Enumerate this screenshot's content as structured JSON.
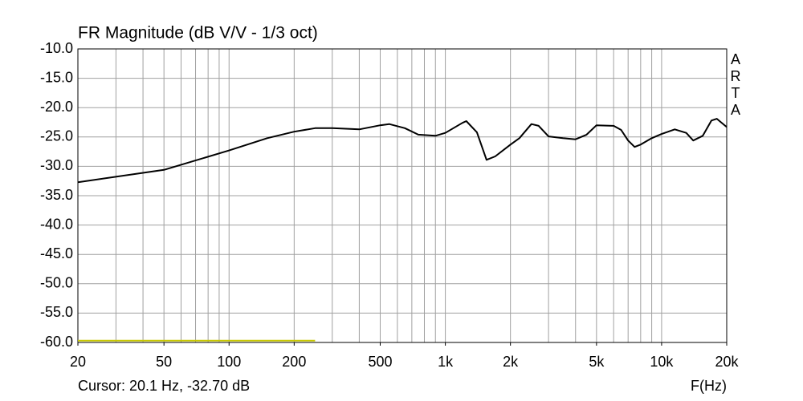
{
  "chart_data": {
    "type": "line",
    "title": "FR Magnitude (dB V/V - 1/3 oct)",
    "side_label": "ARTA",
    "cursor_text": "Cursor: 20.1 Hz, -32.70 dB",
    "x_label": "F(Hz)",
    "x_log": true,
    "grid": true,
    "xlim": [
      20,
      20000
    ],
    "ylim": [
      -60,
      -10
    ],
    "xticks": [
      20,
      50,
      100,
      200,
      500,
      {
        "value": 1000,
        "label": "1k"
      },
      {
        "value": 2000,
        "label": "2k"
      },
      {
        "value": 5000,
        "label": "5k"
      },
      {
        "value": 10000,
        "label": "10k"
      },
      {
        "value": 20000,
        "label": "20k"
      }
    ],
    "x_grid": [
      20,
      30,
      40,
      50,
      60,
      70,
      80,
      90,
      100,
      200,
      300,
      400,
      500,
      600,
      700,
      800,
      900,
      1000,
      2000,
      3000,
      4000,
      5000,
      6000,
      7000,
      8000,
      9000,
      10000,
      20000
    ],
    "yticks": [
      {
        "value": -10,
        "label": "-10.0"
      },
      {
        "value": -15,
        "label": "-15.0"
      },
      {
        "value": -20,
        "label": "-20.0"
      },
      {
        "value": -25,
        "label": "-25.0"
      },
      {
        "value": -30,
        "label": "-30.0"
      },
      {
        "value": -35,
        "label": "-35.0"
      },
      {
        "value": -40,
        "label": "-40.0"
      },
      {
        "value": -45,
        "label": "-45.0"
      },
      {
        "value": -50,
        "label": "-50.0"
      },
      {
        "value": -55,
        "label": "-55.0"
      },
      {
        "value": -60,
        "label": "-60.0"
      }
    ],
    "series": [
      {
        "color": "#000000",
        "x": [
          20,
          50,
          100,
          150,
          200,
          250,
          300,
          400,
          500,
          550,
          650,
          750,
          900,
          1000,
          1200,
          1250,
          1400,
          1550,
          1700,
          2000,
          2200,
          2500,
          2700,
          3000,
          3500,
          4000,
          4500,
          5000,
          6000,
          6500,
          7000,
          7500,
          8000,
          9000,
          10000,
          11500,
          13000,
          14000,
          15500,
          17000,
          18000,
          20000
        ],
        "values": [
          -32.7,
          -30.6,
          -27.3,
          -25.2,
          -24.1,
          -23.5,
          -23.5,
          -23.7,
          -23.0,
          -22.8,
          -23.5,
          -24.6,
          -24.8,
          -24.3,
          -22.6,
          -22.3,
          -24.2,
          -28.9,
          -28.3,
          -26.3,
          -25.2,
          -22.8,
          -23.1,
          -24.9,
          -25.2,
          -25.4,
          -24.6,
          -23.0,
          -23.1,
          -23.8,
          -25.6,
          -26.7,
          -26.3,
          -25.2,
          -24.5,
          -23.7,
          -24.3,
          -25.6,
          -24.8,
          -22.2,
          -21.9,
          -23.3
        ]
      },
      {
        "color": "#c8c800",
        "x": [
          20,
          250
        ],
        "values": [
          -59.7,
          -59.7
        ]
      }
    ]
  }
}
